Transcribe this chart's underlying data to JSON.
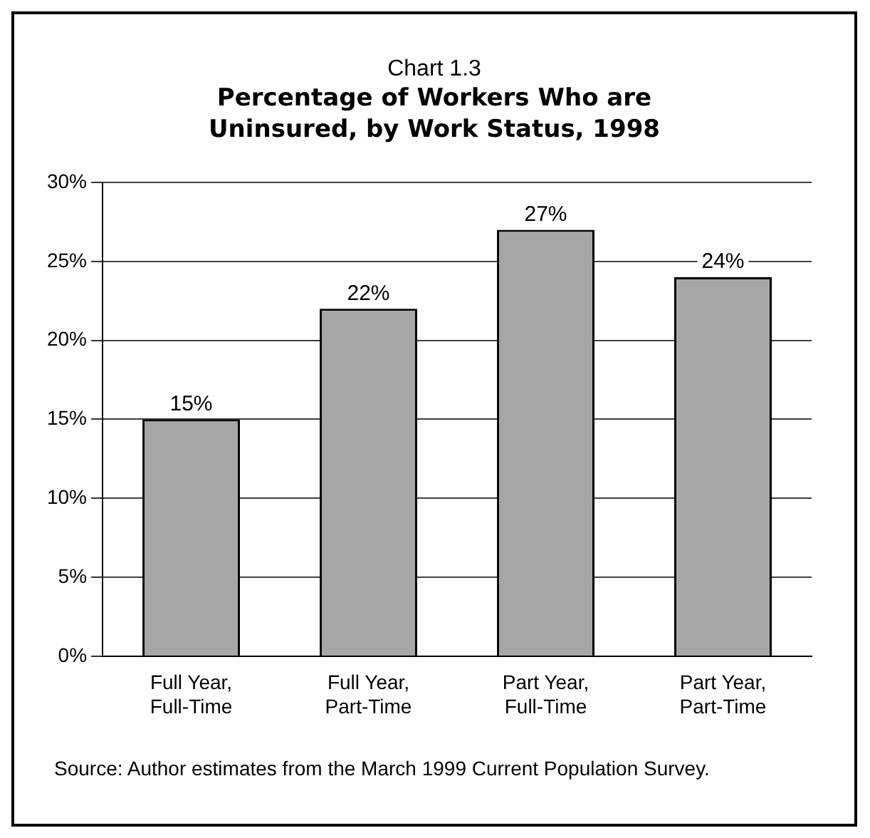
{
  "chart_data": {
    "type": "bar",
    "subtitle": "Chart 1.3",
    "title": "Percentage of Workers Who are Uninsured, by Work Status, 1998",
    "categories": [
      "Full Year, Full-Time",
      "Full Year, Part-Time",
      "Part Year, Full-Time",
      "Part Year, Part-Time"
    ],
    "values": [
      15,
      22,
      27,
      24
    ],
    "color": "#a6a6a6",
    "value_labels": [
      "15%",
      "22%",
      "27%",
      "24%"
    ],
    "ylim": [
      0,
      30
    ],
    "yticks": [
      {
        "value": 0,
        "label": "0%"
      },
      {
        "value": 5,
        "label": "5%"
      },
      {
        "value": 10,
        "label": "10%"
      },
      {
        "value": 15,
        "label": "15%"
      },
      {
        "value": 20,
        "label": "20%"
      },
      {
        "value": 25,
        "label": "25%"
      },
      {
        "value": 30,
        "label": "30%"
      }
    ],
    "grid": "y",
    "legend": false,
    "annotations": [
      "Source: Author estimates from the March 1999 Current Population Survey."
    ]
  }
}
